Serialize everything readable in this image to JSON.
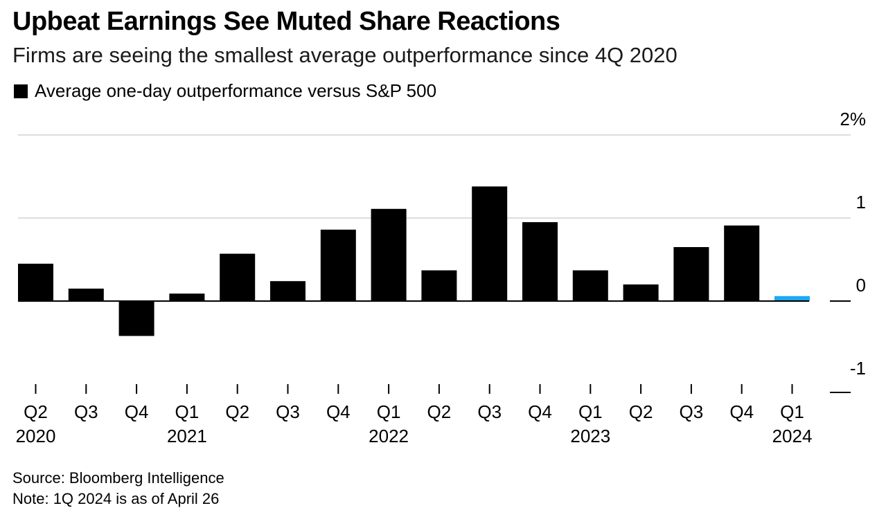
{
  "title": "Upbeat Earnings See Muted Share Reactions",
  "subtitle": "Firms are seeing the smallest average outperformance since 4Q 2020",
  "source": "Source: Bloomberg Intelligence",
  "note": "Note: 1Q 2024 is as of April 26",
  "colors": {
    "bar": "#000000",
    "highlight": "#1ea7f5",
    "grid": "#dddddd",
    "axis": "#000000"
  },
  "chart_data": {
    "type": "bar",
    "categories": [
      "Q2",
      "Q3",
      "Q4",
      "Q1",
      "Q2",
      "Q3",
      "Q4",
      "Q1",
      "Q2",
      "Q3",
      "Q4",
      "Q1",
      "Q2",
      "Q3",
      "Q4",
      "Q1"
    ],
    "year_labels": [
      {
        "label": "2020",
        "index": 0
      },
      {
        "label": "2021",
        "index": 3
      },
      {
        "label": "2022",
        "index": 7
      },
      {
        "label": "2023",
        "index": 11
      },
      {
        "label": "2024",
        "index": 15
      }
    ],
    "series": [
      {
        "name": "Average one-day outperformance versus S&P 500",
        "values": [
          0.45,
          0.15,
          -0.42,
          0.09,
          0.57,
          0.24,
          0.86,
          1.11,
          0.37,
          1.38,
          0.95,
          0.37,
          0.2,
          0.65,
          0.91,
          0.06
        ],
        "highlight_index": 15
      }
    ],
    "yticks": [
      {
        "value": 2,
        "label": "2%"
      },
      {
        "value": 1,
        "label": "1"
      },
      {
        "value": 0,
        "label": "0"
      },
      {
        "value": -1,
        "label": "-1"
      }
    ],
    "ylim": [
      -1,
      2
    ],
    "grid": true,
    "legend_position": "top-left"
  }
}
